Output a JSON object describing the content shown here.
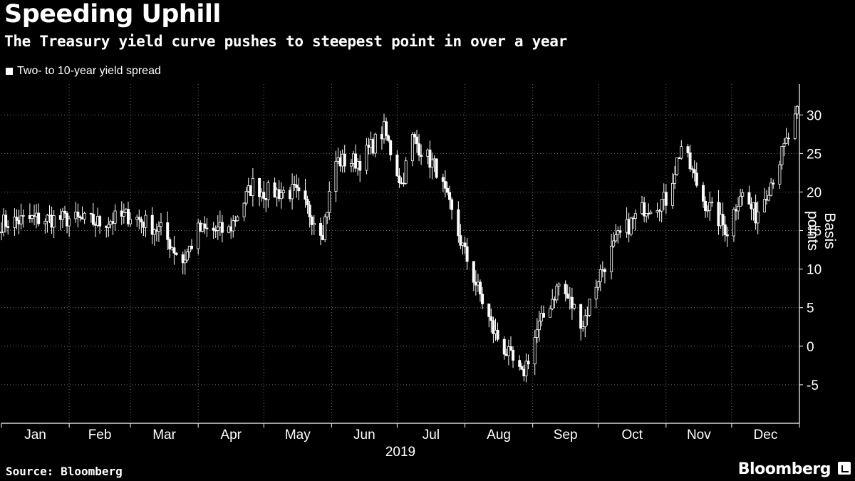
{
  "header": {
    "title": "Speeding Uphill",
    "subtitle": "The Treasury yield curve pushes to steepest point in over a year"
  },
  "footer": {
    "source": "Source: Bloomberg",
    "brand": "Bloomberg"
  },
  "chart_data": {
    "type": "candlestick",
    "series_name": "Two- to 10-year yield spread",
    "ylabel": "Basis points",
    "xlabel": "2019",
    "ylim": [
      -10,
      34
    ],
    "yticks": [
      -5,
      0,
      5,
      10,
      15,
      20,
      25,
      30
    ],
    "grid": true,
    "legend": "top-left",
    "months": [
      "Jan",
      "Feb",
      "Mar",
      "Apr",
      "May",
      "Jun",
      "Jul",
      "Aug",
      "Sep",
      "Oct",
      "Nov",
      "Dec"
    ],
    "colors": {
      "background": "#000000",
      "foreground": "#ffffff",
      "grid": "#6b6b6b"
    },
    "close_by_day": [
      {
        "date": "2019-01-02",
        "close": 16
      },
      {
        "date": "2019-01-15",
        "close": 16.5
      },
      {
        "date": "2019-02-01",
        "close": 16.5
      },
      {
        "date": "2019-02-15",
        "close": 16
      },
      {
        "date": "2019-03-01",
        "close": 17
      },
      {
        "date": "2019-03-15",
        "close": 15
      },
      {
        "date": "2019-03-25",
        "close": 11
      },
      {
        "date": "2019-04-01",
        "close": 15
      },
      {
        "date": "2019-04-15",
        "close": 15
      },
      {
        "date": "2019-04-26",
        "close": 21
      },
      {
        "date": "2019-05-01",
        "close": 20
      },
      {
        "date": "2019-05-15",
        "close": 20
      },
      {
        "date": "2019-05-28",
        "close": 15
      },
      {
        "date": "2019-06-03",
        "close": 24
      },
      {
        "date": "2019-06-14",
        "close": 24
      },
      {
        "date": "2019-06-25",
        "close": 28
      },
      {
        "date": "2019-07-03",
        "close": 21
      },
      {
        "date": "2019-07-08",
        "close": 27
      },
      {
        "date": "2019-07-19",
        "close": 23
      },
      {
        "date": "2019-08-01",
        "close": 12
      },
      {
        "date": "2019-08-14",
        "close": 2
      },
      {
        "date": "2019-08-27",
        "close": -4
      },
      {
        "date": "2019-09-03",
        "close": 2
      },
      {
        "date": "2019-09-13",
        "close": 8
      },
      {
        "date": "2019-09-24",
        "close": 3
      },
      {
        "date": "2019-10-01",
        "close": 9
      },
      {
        "date": "2019-10-10",
        "close": 14
      },
      {
        "date": "2019-10-22",
        "close": 18
      },
      {
        "date": "2019-11-01",
        "close": 19
      },
      {
        "date": "2019-11-08",
        "close": 26
      },
      {
        "date": "2019-11-18",
        "close": 19
      },
      {
        "date": "2019-11-29",
        "close": 15
      },
      {
        "date": "2019-12-05",
        "close": 20
      },
      {
        "date": "2019-12-12",
        "close": 17
      },
      {
        "date": "2019-12-20",
        "close": 22
      },
      {
        "date": "2019-12-31",
        "close": 30
      }
    ]
  }
}
